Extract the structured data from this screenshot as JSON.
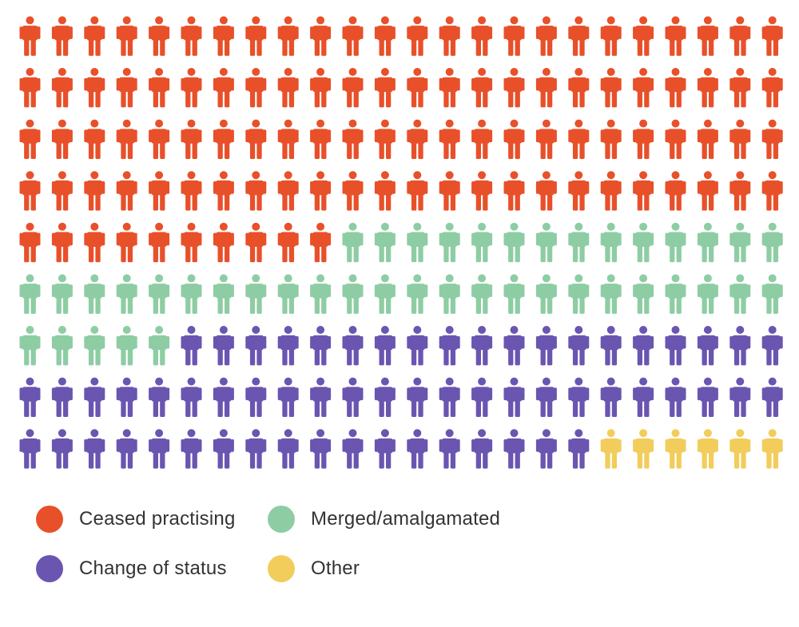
{
  "chart_data": {
    "type": "waffle",
    "title": "",
    "grid": {
      "columns": 24,
      "rows": 9,
      "total_icons": 216,
      "icon": "person-icon"
    },
    "series": [
      {
        "name": "Ceased practising",
        "count": 106,
        "color": "#e8502a"
      },
      {
        "name": "Merged/amalgamated",
        "count": 43,
        "color": "#8ecda4"
      },
      {
        "name": "Change of status",
        "count": 61,
        "color": "#6a55b0"
      },
      {
        "name": "Other",
        "count": 6,
        "color": "#f2cd5c"
      }
    ],
    "legend": {
      "placement": "bottom-left",
      "items": [
        {
          "label": "Ceased practising",
          "color": "#e8502a"
        },
        {
          "label": "Merged/amalgamated",
          "color": "#8ecda4"
        },
        {
          "label": "Change of status",
          "color": "#6a55b0"
        },
        {
          "label": "Other",
          "color": "#f2cd5c"
        }
      ]
    }
  }
}
